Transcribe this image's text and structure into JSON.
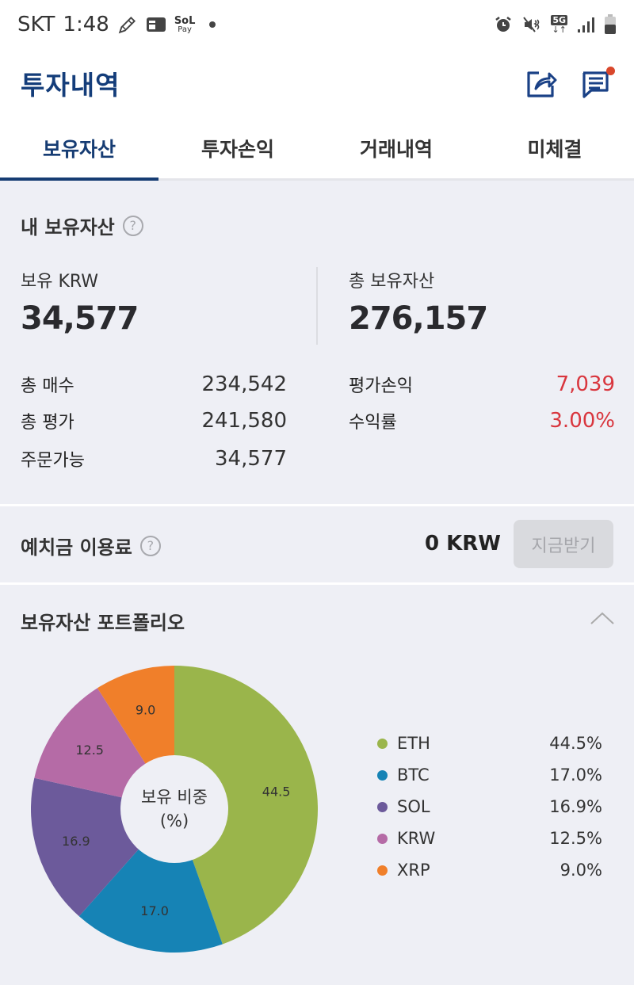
{
  "status_bar": {
    "carrier": "SKT",
    "time": "1:48",
    "left_icons": [
      "pencil-icon",
      "card-icon",
      "sol-pay-icon",
      "dot-icon"
    ],
    "sol_pay_top": "SoL",
    "sol_pay_bottom": "Pay",
    "network": "5G",
    "right_icons": [
      "alarm-icon",
      "mute-vibrate-icon",
      "5g-data-icon",
      "signal-icon",
      "battery-icon"
    ]
  },
  "app_bar": {
    "title": "투자내역",
    "actions": [
      "share-icon",
      "notice-icon"
    ],
    "notice_badge_color": "#d9472b"
  },
  "tabs": [
    {
      "label": "보유자산",
      "active": true
    },
    {
      "label": "투자손익",
      "active": false
    },
    {
      "label": "거래내역",
      "active": false
    },
    {
      "label": "미체결",
      "active": false
    }
  ],
  "holdings": {
    "title": "내 보유자산",
    "help": "?",
    "krw_label": "보유 KRW",
    "krw_value": "34,577",
    "total_label": "총 보유자산",
    "total_value": "276,157",
    "left_rows": [
      {
        "label": "총 매수",
        "value": "234,542"
      },
      {
        "label": "총 평가",
        "value": "241,580"
      },
      {
        "label": "주문가능",
        "value": "34,577"
      }
    ],
    "right_rows": [
      {
        "label": "평가손익",
        "value": "7,039"
      },
      {
        "label": "수익률",
        "value": "3.00%"
      }
    ]
  },
  "deposit": {
    "title": "예치금 이용료",
    "help": "?",
    "amount": "0 KRW",
    "button_label": "지금받기"
  },
  "portfolio": {
    "title": "보유자산 포트폴리오",
    "collapse_icon": "chevron-up-icon",
    "center_line1": "보유 비중",
    "center_line2": "(%)"
  },
  "chart_data": {
    "type": "pie",
    "title": "보유 비중 (%)",
    "categories": [
      "ETH",
      "BTC",
      "SOL",
      "KRW",
      "XRP"
    ],
    "values": [
      44.5,
      17.0,
      16.9,
      12.5,
      9.0
    ],
    "labels": [
      "44.5",
      "17.0",
      "16.9",
      "12.5",
      "9.0"
    ],
    "legend_values": [
      "44.5%",
      "17.0%",
      "16.9%",
      "12.5%",
      "9.0%"
    ],
    "colors": [
      "#9ab54b",
      "#1683b5",
      "#6c5a9b",
      "#b56ba6",
      "#f07f2a"
    ],
    "donut": true,
    "legend_position": "right"
  }
}
